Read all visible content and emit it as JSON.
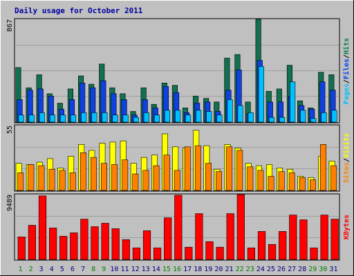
{
  "chart_data": {
    "type": "bar",
    "title": "Daily usage for October 2011",
    "categories": [
      "1",
      "2",
      "3",
      "4",
      "5",
      "6",
      "7",
      "8",
      "9",
      "10",
      "11",
      "12",
      "13",
      "14",
      "15",
      "16",
      "17",
      "18",
      "19",
      "20",
      "21",
      "22",
      "23",
      "24",
      "25",
      "26",
      "27",
      "28",
      "29",
      "30",
      "31"
    ],
    "weekend_days": [
      "1",
      "2",
      "8",
      "9",
      "15",
      "16",
      "22",
      "23",
      "29",
      "30"
    ],
    "panels": [
      {
        "id": "hits",
        "max_label": "867",
        "ylim": [
          0,
          867
        ],
        "legend": [
          {
            "text": "Pages",
            "color": "#00c0ff"
          },
          {
            "text": "/",
            "color": "#000000"
          },
          {
            "text": "Files",
            "color": "#0040ff"
          },
          {
            "text": "/",
            "color": "#000000"
          },
          {
            "text": "Hits",
            "color": "#008040"
          }
        ],
        "series": [
          {
            "name": "Hits",
            "color": "#107050",
            "values": [
              460,
              290,
              400,
              240,
              160,
              280,
              390,
              320,
              490,
              290,
              240,
              90,
              290,
              150,
              330,
              310,
              120,
              220,
              200,
              170,
              540,
              570,
              170,
              867,
              260,
              280,
              480,
              180,
              120,
              420,
              400
            ]
          },
          {
            "name": "Files",
            "color": "#1040e0",
            "values": [
              190,
              270,
              280,
              220,
              110,
              190,
              330,
              290,
              350,
              240,
              190,
              60,
              190,
              120,
              300,
              250,
              80,
              160,
              170,
              90,
              270,
              440,
              70,
              520,
              170,
              170,
              220,
              140,
              110,
              340,
              270
            ]
          },
          {
            "name": "Pages",
            "color": "#00c0ff",
            "values": [
              60,
              60,
              80,
              60,
              60,
              60,
              80,
              80,
              80,
              60,
              60,
              40,
              80,
              60,
              100,
              100,
              60,
              100,
              90,
              60,
              190,
              140,
              80,
              470,
              40,
              40,
              340,
              100,
              30,
              80,
              100
            ]
          }
        ]
      },
      {
        "id": "visits",
        "max_label": "55",
        "ylim": [
          0,
          55
        ],
        "legend": [
          {
            "text": "Sites",
            "color": "#ff8000"
          },
          {
            "text": "/",
            "color": "#000000"
          },
          {
            "text": "Visits",
            "color": "#ffff00"
          }
        ],
        "series": [
          {
            "name": "Visits",
            "color": "#ffff00",
            "values": [
              23,
              22,
              24,
              27,
              19,
              29,
              39,
              34,
              40,
              41,
              42,
              23,
              28,
              30,
              48,
              37,
              36,
              51,
              38,
              18,
              39,
              36,
              23,
              21,
              22,
              19,
              18,
              12,
              11,
              29,
              25
            ]
          },
          {
            "name": "Sites",
            "color": "#ff8000",
            "values": [
              15,
              22,
              21,
              18,
              17,
              15,
              32,
              28,
              23,
              22,
              26,
              14,
              17,
              21,
              30,
              17,
              37,
              38,
              23,
              16,
              37,
              34,
              20,
              17,
              12,
              16,
              15,
              11,
              9,
              39,
              21
            ]
          }
        ]
      },
      {
        "id": "kbytes",
        "max_label": "9489",
        "ylim": [
          0,
          9489
        ],
        "legend": [
          {
            "text": "KBytes",
            "color": "#ff0000"
          }
        ],
        "series": [
          {
            "name": "KBytes",
            "color": "#ff0000",
            "values": [
              3300,
              5000,
              9300,
              4600,
              3400,
              3900,
              5900,
              4800,
              5300,
              4500,
              2900,
              1700,
              4200,
              1700,
              6100,
              9400,
              1800,
              6700,
              2600,
              1800,
              6700,
              9489,
              1700,
              4100,
              2200,
              4100,
              6500,
              5800,
              1700,
              6500,
              5900
            ]
          }
        ]
      }
    ]
  }
}
